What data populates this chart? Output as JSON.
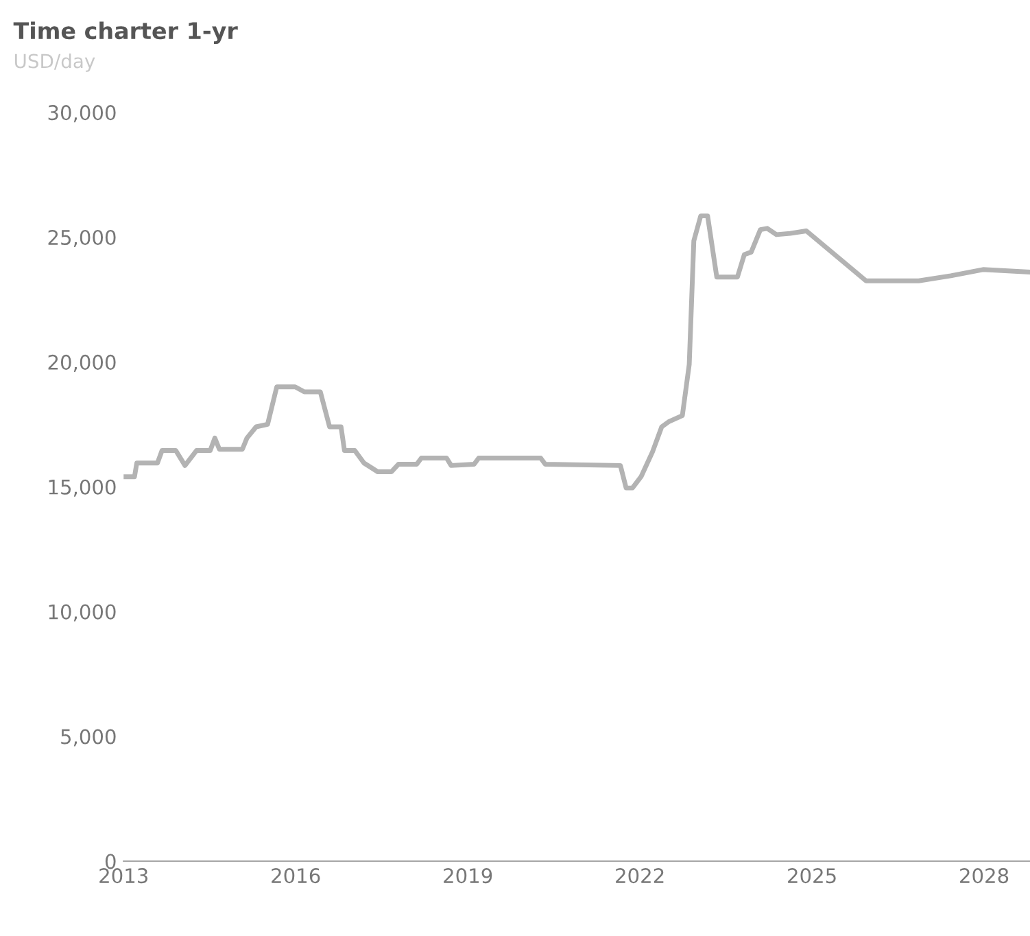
{
  "chart_data": {
    "type": "line",
    "title": "Time charter 1-yr",
    "subtitle": "USD/day",
    "x": [
      2013.03,
      2013.19,
      2013.23,
      2013.59,
      2013.67,
      2013.91,
      2014.07,
      2014.27,
      2014.51,
      2014.59,
      2014.67,
      2015.07,
      2015.15,
      2015.31,
      2015.51,
      2015.67,
      2015.99,
      2016.15,
      2016.43,
      2016.59,
      2016.79,
      2016.85,
      2017.03,
      2017.19,
      2017.43,
      2017.67,
      2017.79,
      2018.11,
      2018.19,
      2018.63,
      2018.71,
      2019.11,
      2019.19,
      2020.27,
      2020.35,
      2021.66,
      2021.76,
      2021.87,
      2022.02,
      2022.22,
      2022.38,
      2022.5,
      2022.74,
      2022.86,
      2022.94,
      2023.06,
      2023.18,
      2023.34,
      2023.7,
      2023.82,
      2023.94,
      2024.1,
      2024.22,
      2024.38,
      2024.62,
      2024.9,
      2025.94,
      2026.86,
      2027.42,
      2027.98,
      2028.78
    ],
    "series": [
      {
        "color": "#b3b3b3",
        "values": [
          15400,
          15400,
          15950,
          15950,
          16450,
          16450,
          15850,
          16450,
          16450,
          16950,
          16500,
          16500,
          16950,
          17400,
          17500,
          19000,
          19000,
          18800,
          18800,
          17400,
          17400,
          16450,
          16450,
          15950,
          15600,
          15600,
          15900,
          15900,
          16150,
          16150,
          15850,
          15900,
          16150,
          16150,
          15900,
          15850,
          14950,
          14950,
          15400,
          16400,
          17400,
          17600,
          17850,
          19900,
          24850,
          25850,
          25850,
          23400,
          23400,
          24300,
          24400,
          25300,
          25350,
          25100,
          25150,
          25250,
          23250,
          23250,
          23450,
          23700,
          23600
        ]
      }
    ],
    "xlim": [
      2013,
      2028.8
    ],
    "ylim": [
      0,
      30000
    ],
    "xticks": [
      2013,
      2016,
      2019,
      2022,
      2025,
      2028
    ],
    "yticks": [
      0,
      {
        "value": 5000,
        "label": "5,000"
      },
      {
        "value": 10000,
        "label": "10,000"
      },
      {
        "value": 15000,
        "label": "15,000"
      },
      {
        "value": 20000,
        "label": "20,000"
      },
      {
        "value": 25000,
        "label": "25,000"
      },
      {
        "value": 30000,
        "label": "30,000"
      }
    ],
    "grid": false,
    "marker": "none",
    "line_style": "solid"
  }
}
